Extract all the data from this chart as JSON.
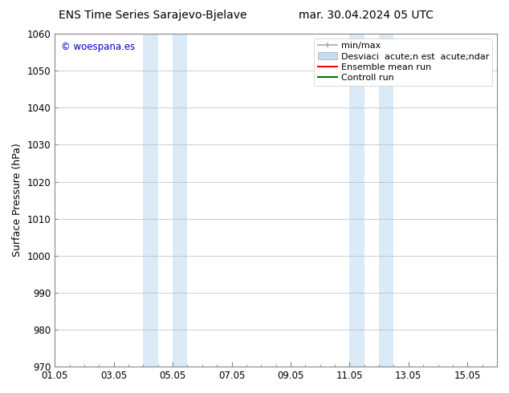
{
  "title_left": "ENS Time Series Sarajevo-Bjelave",
  "title_right": "mar. 30.04.2024 05 UTC",
  "ylabel": "Surface Pressure (hPa)",
  "ylim": [
    970,
    1060
  ],
  "yticks": [
    970,
    980,
    990,
    1000,
    1010,
    1020,
    1030,
    1040,
    1050,
    1060
  ],
  "xstart_day": 1,
  "xend_day": 16,
  "xtick_labels": [
    "01.05",
    "03.05",
    "05.05",
    "07.05",
    "09.05",
    "11.05",
    "13.05",
    "15.05"
  ],
  "xtick_days": [
    1,
    3,
    5,
    7,
    9,
    11,
    13,
    15
  ],
  "shaded_bands": [
    {
      "xstart": 4.0,
      "xend": 4.5,
      "color": "#daeaf7"
    },
    {
      "xstart": 5.0,
      "xend": 5.5,
      "color": "#daeaf7"
    },
    {
      "xstart": 11.0,
      "xend": 11.5,
      "color": "#daeaf7"
    },
    {
      "xstart": 12.0,
      "xend": 12.5,
      "color": "#daeaf7"
    }
  ],
  "watermark_text": "© woespana.es",
  "watermark_color": "#0000cc",
  "bg_color": "#ffffff",
  "plot_bg_color": "#ffffff",
  "grid_color": "#bbbbbb",
  "legend_labels": [
    "min/max",
    "Desviaci  acute;n est  acute;ndar",
    "Ensemble mean run",
    "Controll run"
  ],
  "legend_colors": [
    "#aaaaaa",
    "#c8ddf0",
    "#ff0000",
    "#007700"
  ],
  "title_fontsize": 10,
  "axis_label_fontsize": 9,
  "tick_fontsize": 8.5,
  "legend_fontsize": 8
}
